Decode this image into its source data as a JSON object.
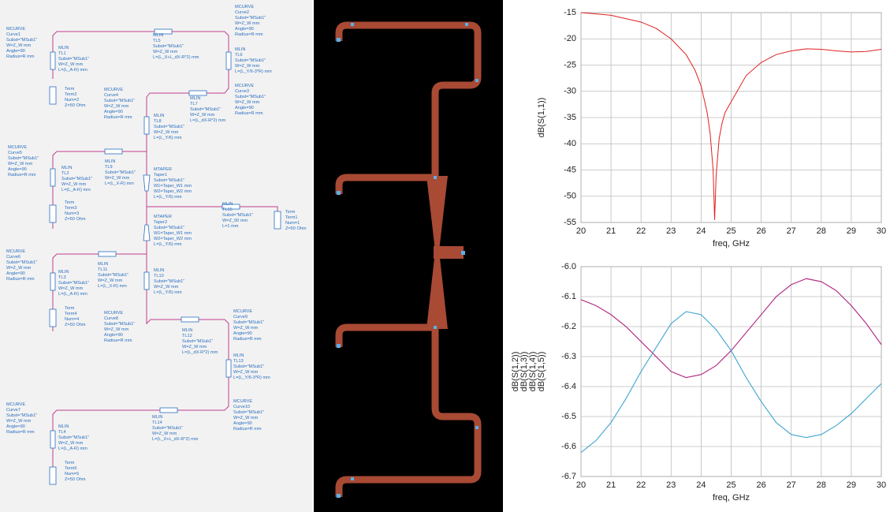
{
  "schematic": {
    "components": [
      {
        "lines": [
          "MCURVE",
          "Curve1",
          "Subst=\"MSub1\"",
          "W=Z_W mm",
          "Angle=90",
          "Radius=R mm"
        ]
      },
      {
        "lines": [
          "MLIN",
          "TL1",
          "Subst=\"MSub1\"",
          "W=Z_W mm",
          "L=(L_A-R) mm"
        ]
      },
      {
        "lines": [
          "Term",
          "Term2",
          "Num=2",
          "Z=50 Ohm"
        ]
      },
      {
        "lines": [
          "MLIN",
          "TL5",
          "Subst=\"MSub1\"",
          "W=Z_W mm",
          "L=(L_X+L_dX-R*2) mm"
        ]
      },
      {
        "lines": [
          "MCURVE",
          "Curve2",
          "Subst=\"MSub1\"",
          "W=Z_W mm",
          "Angle=90",
          "Radius=R mm"
        ]
      },
      {
        "lines": [
          "MLIN",
          "TL6",
          "Subst=\"MSub1\"",
          "W=Z_W mm",
          "L=(L_Y/6-3*R) mm"
        ]
      },
      {
        "lines": [
          "MCURVE",
          "Curve3",
          "Subst=\"MSub1\"",
          "W=Z_W mm",
          "Angle=90",
          "Radius=R mm"
        ]
      },
      {
        "lines": [
          "MCURVE",
          "Curve4",
          "Subst=\"MSub1\"",
          "W=Z_W mm",
          "Angle=90",
          "Radius=R mm"
        ]
      },
      {
        "lines": [
          "MLIN",
          "TL7",
          "Subst=\"MSub1\"",
          "W=Z_W mm",
          "L=(L_dX-R*2) mm"
        ]
      },
      {
        "lines": [
          "MLIN",
          "TL8",
          "Subst=\"MSub1\"",
          "W=Z_W mm",
          "L=(L_Y/6) mm"
        ]
      },
      {
        "lines": [
          "MCURVE",
          "Curve5",
          "Subst=\"MSub1\"",
          "W=Z_W mm",
          "Angle=90",
          "Radius=R mm"
        ]
      },
      {
        "lines": [
          "MLIN",
          "TL2",
          "Subst=\"MSub1\"",
          "W=Z_W mm",
          "L=(L_A-R) mm"
        ]
      },
      {
        "lines": [
          "MLIN",
          "TL9",
          "Subst=\"MSub1\"",
          "W=Z_W mm",
          "L=(L_X-R) mm"
        ]
      },
      {
        "lines": [
          "MTAPER",
          "Taper1",
          "Subst=\"MSub1\"",
          "W1=Taper_W1 mm",
          "W2=Taper_W2 mm",
          "L=(L_Y/6) mm"
        ]
      },
      {
        "lines": [
          "Term",
          "Term3",
          "Num=3",
          "Z=50 Ohm"
        ]
      },
      {
        "lines": [
          "MLIN",
          "TL15",
          "Subst=\"MSub1\"",
          "W=Z_50 mm",
          "L=1 mm"
        ]
      },
      {
        "lines": [
          "Term",
          "Term1",
          "Num=1",
          "Z=50 Ohm"
        ]
      },
      {
        "lines": [
          "MTAPER",
          "Taper2",
          "Subst=\"MSub1\"",
          "W1=Taper_W1 mm",
          "W2=Taper_W2 mm",
          "L=(L_Y/6) mm"
        ]
      },
      {
        "lines": [
          "MCURVE",
          "Curve6",
          "Subst=\"MSub1\"",
          "W=Z_W mm",
          "Angle=90",
          "Radius=R mm"
        ]
      },
      {
        "lines": [
          "MLIN",
          "TL11",
          "Subst=\"MSub1\"",
          "W=Z_W mm",
          "L=(L_X-R) mm"
        ]
      },
      {
        "lines": [
          "MLIN",
          "TL3",
          "Subst=\"MSub1\"",
          "W=Z_W mm",
          "L=(L_A-R) mm"
        ]
      },
      {
        "lines": [
          "MLIN",
          "TL10",
          "Subst=\"MSub1\"",
          "W=Z_W mm",
          "L=(L_Y/6) mm"
        ]
      },
      {
        "lines": [
          "Term",
          "Term4",
          "Num=4",
          "Z=50 Ohm"
        ]
      },
      {
        "lines": [
          "MCURVE",
          "Curve8",
          "Subst=\"MSub1\"",
          "W=Z_W mm",
          "Angle=90",
          "Radius=R mm"
        ]
      },
      {
        "lines": [
          "MLIN",
          "TL12",
          "Subst=\"MSub1\"",
          "W=Z_W mm",
          "L=(L_dX-R*2) mm"
        ]
      },
      {
        "lines": [
          "MCURVE",
          "Curve9",
          "Subst=\"MSub1\"",
          "W=Z_W mm",
          "Angle=90",
          "Radius=R mm"
        ]
      },
      {
        "lines": [
          "MLIN",
          "TL13",
          "Subst=\"MSub1\"",
          "W=Z_W mm",
          "L=(L_Y/6-3*R) mm"
        ]
      },
      {
        "lines": [
          "MCURVE",
          "Curve7",
          "Subst=\"MSub1\"",
          "W=Z_W mm",
          "Angle=90",
          "Radius=R mm"
        ]
      },
      {
        "lines": [
          "MLIN",
          "TL14",
          "Subst=\"MSub1\"",
          "W=Z_W mm",
          "L=(L_X+L_dX-R*2) mm"
        ]
      },
      {
        "lines": [
          "MCURVE",
          "Curve10",
          "Subst=\"MSub1\"",
          "W=Z_W mm",
          "Angle=90",
          "Radius=R mm"
        ]
      },
      {
        "lines": [
          "MLIN",
          "TL4",
          "Subst=\"MSub1\"",
          "W=Z_W mm",
          "L=(L_A-R) mm"
        ]
      },
      {
        "lines": [
          "Term",
          "Term5",
          "Num=5",
          "Z=50 Ohm"
        ]
      }
    ]
  },
  "chart_data": [
    {
      "type": "line",
      "xlabel": "freq, GHz",
      "xlim": [
        20,
        30
      ],
      "ylim": [
        -55,
        -15
      ],
      "xticks": [
        20,
        21,
        22,
        23,
        24,
        25,
        26,
        27,
        28,
        29,
        30
      ],
      "yticks": [
        -55,
        -50,
        -45,
        -40,
        -35,
        -30,
        -25,
        -20,
        -15
      ],
      "grid": true,
      "x": [
        20,
        21,
        22,
        22.5,
        23,
        23.5,
        23.8,
        24,
        24.2,
        24.3,
        24.4,
        24.45,
        24.5,
        24.6,
        24.7,
        24.8,
        25,
        25.5,
        26,
        26.5,
        27,
        27.5,
        28,
        28.5,
        29,
        29.5,
        30
      ],
      "series": [
        {
          "name": "dB(S(1,1))",
          "color": "#e02020",
          "values": [
            -15,
            -15.5,
            -16.8,
            -18,
            -20,
            -23,
            -26,
            -29,
            -34,
            -38,
            -45,
            -54.5,
            -46,
            -39,
            -36,
            -34,
            -32,
            -27,
            -24.5,
            -23,
            -22.3,
            -21.9,
            -22,
            -22.3,
            -22.5,
            -22.4,
            -22
          ]
        }
      ]
    },
    {
      "type": "line",
      "xlabel": "freq, GHz",
      "xlim": [
        20,
        30
      ],
      "ylim": [
        -6.7,
        -6.0
      ],
      "xticks": [
        20,
        21,
        22,
        23,
        24,
        25,
        26,
        27,
        28,
        29,
        30
      ],
      "yticks": [
        -6.7,
        -6.6,
        -6.5,
        -6.4,
        -6.3,
        -6.2,
        -6.1,
        {
          "value": -6,
          "label": "-6.0"
        }
      ],
      "grid": true,
      "x": [
        20,
        20.5,
        21,
        21.5,
        22,
        22.5,
        23,
        23.5,
        24,
        24.5,
        25,
        25.5,
        26,
        26.5,
        27,
        27.5,
        28,
        28.5,
        29,
        29.5,
        30
      ],
      "series": [
        {
          "name": "dB(S(1,2))",
          "color": "#c02040",
          "values": [
            -6.11,
            -6.13,
            -6.16,
            -6.2,
            -6.25,
            -6.3,
            -6.35,
            -6.37,
            -6.36,
            -6.33,
            -6.28,
            -6.22,
            -6.16,
            -6.1,
            -6.06,
            -6.04,
            -6.05,
            -6.08,
            -6.13,
            -6.19,
            -6.26
          ]
        },
        {
          "name": "dB(S(1,3))",
          "color": "#b0308f",
          "values": [
            -6.11,
            -6.13,
            -6.16,
            -6.2,
            -6.25,
            -6.3,
            -6.35,
            -6.37,
            -6.36,
            -6.33,
            -6.28,
            -6.22,
            -6.16,
            -6.1,
            -6.06,
            -6.04,
            -6.05,
            -6.08,
            -6.13,
            -6.19,
            -6.26
          ]
        },
        {
          "name": "dB(S(1,4))",
          "color": "#7040b0",
          "values": [
            -6.62,
            -6.58,
            -6.52,
            -6.44,
            -6.35,
            -6.27,
            -6.19,
            -6.15,
            -6.16,
            -6.21,
            -6.28,
            -6.37,
            -6.45,
            -6.52,
            -6.56,
            -6.57,
            -6.56,
            -6.53,
            -6.49,
            -6.44,
            -6.39
          ]
        },
        {
          "name": "dB(S(1,5))",
          "color": "#40b8d8",
          "values": [
            -6.62,
            -6.58,
            -6.52,
            -6.44,
            -6.35,
            -6.27,
            -6.19,
            -6.15,
            -6.16,
            -6.21,
            -6.28,
            -6.37,
            -6.45,
            -6.52,
            -6.56,
            -6.57,
            -6.56,
            -6.53,
            -6.49,
            -6.44,
            -6.39
          ]
        }
      ]
    }
  ]
}
